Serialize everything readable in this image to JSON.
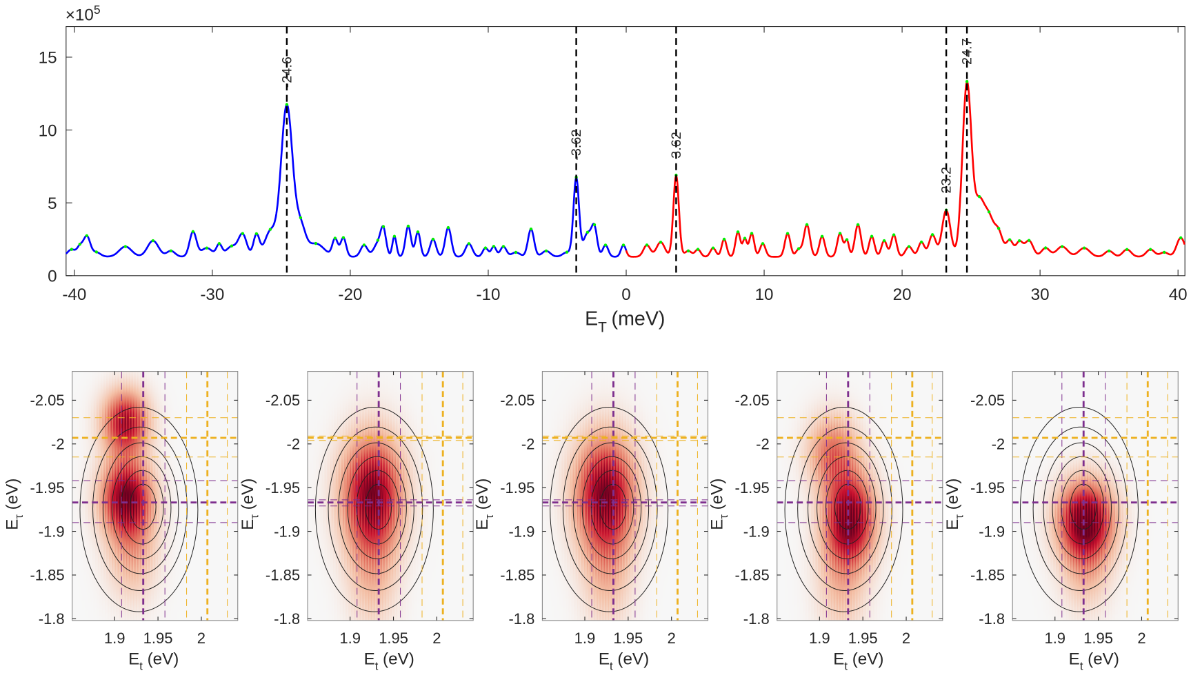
{
  "chart_data": [
    {
      "type": "line",
      "title": "",
      "xlabel": "E_T (meV)",
      "xlabel_main": "E",
      "xlabel_sub": "T",
      "xlabel_unit": "(meV)",
      "ylabel": "",
      "y_exponent_label": "×10",
      "y_exponent_power": "5",
      "xlim": [
        -40.6,
        40.5
      ],
      "ylim": [
        0,
        17.1
      ],
      "xticks": [
        -40,
        -30,
        -20,
        -10,
        0,
        10,
        20,
        30,
        40
      ],
      "yticks": [
        0,
        5,
        10,
        15
      ],
      "grid": false,
      "baseline": 1.3,
      "series": [
        {
          "name": "negative E_T",
          "color": "#0000ff",
          "range": [
            -40.6,
            0
          ]
        },
        {
          "name": "positive E_T",
          "color": "#ff0000",
          "range": [
            0,
            40.5
          ]
        }
      ],
      "peak_marker_color": "#00ee00",
      "peaks": [
        [
          -40.2,
          1.8,
          0.3
        ],
        [
          -39.6,
          1.9,
          0.2
        ],
        [
          -39.1,
          2.7,
          0.25
        ],
        [
          -38.4,
          1.6,
          0.3
        ],
        [
          -36.3,
          2.0,
          0.45
        ],
        [
          -34.3,
          2.4,
          0.4
        ],
        [
          -33.0,
          1.7,
          0.3
        ],
        [
          -31.4,
          3.0,
          0.25
        ],
        [
          -30.4,
          1.9,
          0.4
        ],
        [
          -29.5,
          2.1,
          0.2
        ],
        [
          -28.6,
          2.0,
          0.4
        ],
        [
          -27.8,
          2.8,
          0.3
        ],
        [
          -26.8,
          2.8,
          0.22
        ],
        [
          -25.8,
          3.0,
          0.4
        ],
        [
          -24.6,
          11.7,
          0.42
        ],
        [
          -23.6,
          3.2,
          0.35
        ],
        [
          -22.5,
          2.2,
          0.6
        ],
        [
          -21.1,
          2.5,
          0.2
        ],
        [
          -20.5,
          2.6,
          0.2
        ],
        [
          -19.0,
          2.1,
          0.25
        ],
        [
          -18.0,
          2.2,
          0.3
        ],
        [
          -17.6,
          3.0,
          0.2
        ],
        [
          -16.8,
          2.7,
          0.15
        ],
        [
          -15.8,
          3.4,
          0.2
        ],
        [
          -15.1,
          3.0,
          0.18
        ],
        [
          -14.0,
          2.5,
          0.22
        ],
        [
          -12.9,
          3.3,
          0.22
        ],
        [
          -11.4,
          2.2,
          0.25
        ],
        [
          -10.2,
          1.9,
          0.2
        ],
        [
          -9.6,
          2.0,
          0.18
        ],
        [
          -8.9,
          2.0,
          0.22
        ],
        [
          -8.0,
          1.6,
          0.3
        ],
        [
          -6.9,
          3.2,
          0.22
        ],
        [
          -5.8,
          1.7,
          0.3
        ],
        [
          -4.3,
          1.6,
          0.3
        ],
        [
          -3.62,
          6.7,
          0.2
        ],
        [
          -2.8,
          2.9,
          0.3
        ],
        [
          -2.3,
          3.1,
          0.2
        ],
        [
          -1.5,
          2.1,
          0.2
        ],
        [
          -0.2,
          2.1,
          0.18
        ],
        [
          1.5,
          2.1,
          0.25
        ],
        [
          2.5,
          2.3,
          0.3
        ],
        [
          3.62,
          6.9,
          0.2
        ],
        [
          4.5,
          1.7,
          0.25
        ],
        [
          5.2,
          1.8,
          0.2
        ],
        [
          6.3,
          1.9,
          0.2
        ],
        [
          7.1,
          2.5,
          0.18
        ],
        [
          8.1,
          3.0,
          0.18
        ],
        [
          8.6,
          2.5,
          0.15
        ],
        [
          9.1,
          2.9,
          0.18
        ],
        [
          9.9,
          2.2,
          0.2
        ],
        [
          11.7,
          2.9,
          0.2
        ],
        [
          12.5,
          1.8,
          0.2
        ],
        [
          13.1,
          3.5,
          0.22
        ],
        [
          14.2,
          2.7,
          0.2
        ],
        [
          15.5,
          2.9,
          0.2
        ],
        [
          16.0,
          2.4,
          0.15
        ],
        [
          16.8,
          3.5,
          0.22
        ],
        [
          17.8,
          2.7,
          0.2
        ],
        [
          18.7,
          2.4,
          0.2
        ],
        [
          19.4,
          2.8,
          0.2
        ],
        [
          20.5,
          2.0,
          0.25
        ],
        [
          21.4,
          2.3,
          0.22
        ],
        [
          22.2,
          2.8,
          0.25
        ],
        [
          23.2,
          4.5,
          0.3
        ],
        [
          24.7,
          13.2,
          0.33
        ],
        [
          25.6,
          4.8,
          0.35
        ],
        [
          26.3,
          3.8,
          0.35
        ],
        [
          27.0,
          2.9,
          0.3
        ],
        [
          27.8,
          2.4,
          0.25
        ],
        [
          28.5,
          2.3,
          0.25
        ],
        [
          29.2,
          2.4,
          0.3
        ],
        [
          30.4,
          1.9,
          0.3
        ],
        [
          31.6,
          2.0,
          0.4
        ],
        [
          33.2,
          1.9,
          0.4
        ],
        [
          35.0,
          1.7,
          0.3
        ],
        [
          36.3,
          1.8,
          0.3
        ],
        [
          38.0,
          1.8,
          0.3
        ],
        [
          39.0,
          1.6,
          0.3
        ],
        [
          40.2,
          2.6,
          0.3
        ]
      ],
      "vlines": [
        {
          "x": -24.6,
          "label": "-24.6"
        },
        {
          "x": -3.62,
          "label": "-3.62"
        },
        {
          "x": 3.62,
          "label": "3.62"
        },
        {
          "x": 23.2,
          "label": "23.2"
        },
        {
          "x": 24.7,
          "label": "24.7"
        }
      ]
    },
    {
      "type": "heatmap",
      "panels": 5,
      "xlabel_main": "E",
      "xlabel_sub": "t",
      "xlabel_unit": "(eV)",
      "ylabel_main": "E",
      "ylabel_sub": "τ",
      "ylabel_unit": "(eV)",
      "xlim": [
        1.851,
        2.042
      ],
      "ylim": [
        -2.083,
        -1.798
      ],
      "xticks": [
        "1.9",
        "1.95",
        "2"
      ],
      "yticks": [
        "-2.05",
        "-2",
        "-1.95",
        "-1.9",
        "-1.85",
        "-1.8"
      ],
      "colormap": [
        "#f7f7f7",
        "#f4c0a6",
        "#e3725f",
        "#c8102e",
        "#67001f"
      ],
      "purple": "#7e2f8e",
      "yellow": "#edb120",
      "purple_v": [
        1.908,
        1.933,
        1.958
      ],
      "yellow_v": [
        1.983,
        2.007,
        2.03
      ],
      "contour_center": [
        1.928,
        -1.925
      ],
      "contour_semi_axes": [
        0.068,
        0.117
      ],
      "contour_levels": [
        1.0,
        0.8,
        0.64,
        0.5,
        0.36,
        0.22
      ],
      "panel_data": [
        {
          "purple_h": [
            -1.958,
            -1.933,
            -1.91
          ],
          "yellow_h": [
            -2.03,
            -2.007,
            -1.985
          ],
          "blobs": [
            [
              1.912,
              -2.025,
              0.018,
              0.025,
              0.9
            ],
            [
              1.913,
              -1.94,
              0.02,
              0.03,
              1.0
            ],
            [
              1.92,
              -1.88,
              0.02,
              0.04,
              0.35
            ]
          ]
        },
        {
          "purple_h": [
            -1.936,
            -1.933,
            -1.929
          ],
          "yellow_h": [
            -2.009,
            -2.007,
            -2.004
          ],
          "blobs": [
            [
              1.925,
              -1.945,
              0.024,
              0.045,
              1.0
            ],
            [
              1.925,
              -1.86,
              0.02,
              0.05,
              0.3
            ]
          ]
        },
        {
          "purple_h": [
            -1.936,
            -1.933,
            -1.929
          ],
          "yellow_h": [
            -2.009,
            -2.007,
            -2.004
          ],
          "blobs": [
            [
              1.923,
              -1.945,
              0.024,
              0.045,
              1.0
            ],
            [
              1.925,
              -1.86,
              0.02,
              0.05,
              0.3
            ]
          ]
        },
        {
          "purple_h": [
            -1.958,
            -1.933,
            -1.91
          ],
          "yellow_h": [
            -2.03,
            -2.007,
            -1.985
          ],
          "blobs": [
            [
              1.935,
              -1.915,
              0.02,
              0.035,
              1.0
            ],
            [
              1.915,
              -1.99,
              0.02,
              0.03,
              0.55
            ],
            [
              1.925,
              -1.85,
              0.02,
              0.05,
              0.3
            ]
          ]
        },
        {
          "purple_h": [
            -1.958,
            -1.933,
            -1.91
          ],
          "yellow_h": [
            -2.03,
            -2.007,
            -1.985
          ],
          "blobs": [
            [
              1.935,
              -1.915,
              0.022,
              0.03,
              1.0
            ],
            [
              1.935,
              -1.87,
              0.02,
              0.04,
              0.35
            ]
          ]
        }
      ]
    }
  ]
}
